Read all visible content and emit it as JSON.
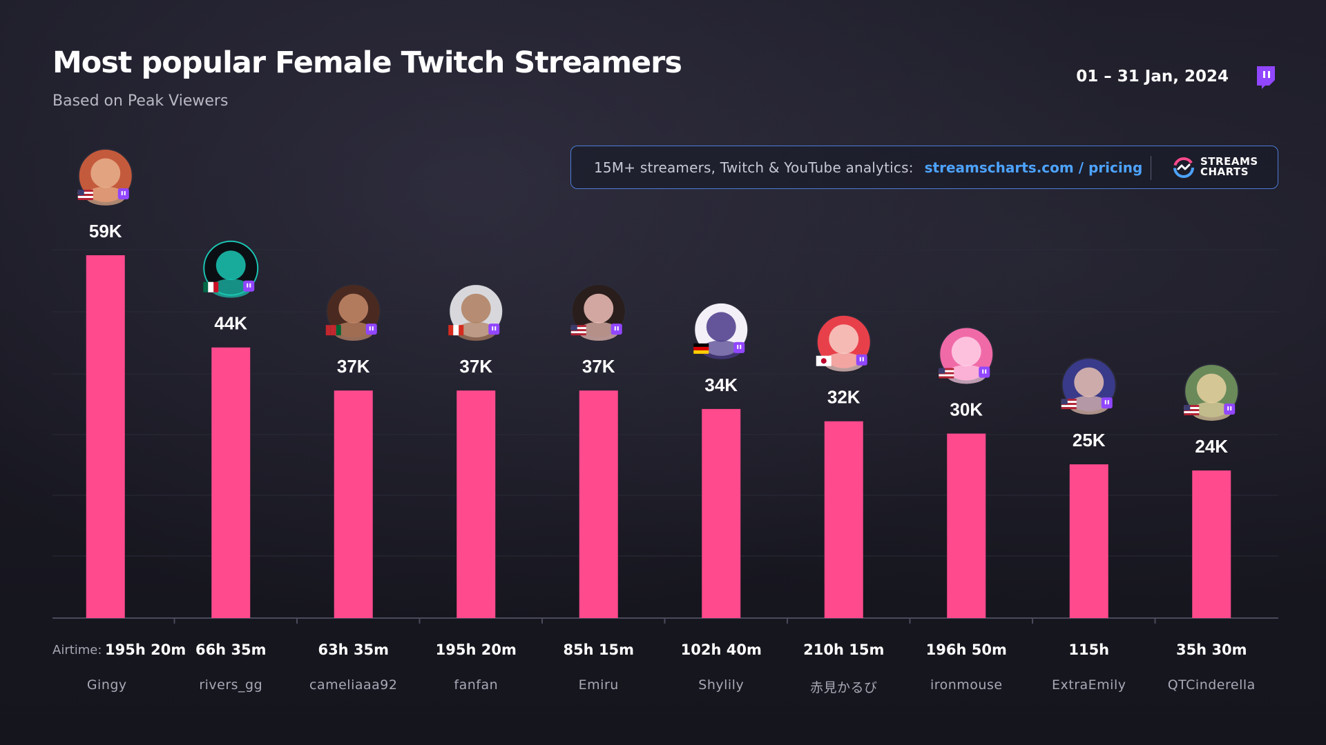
{
  "header": {
    "title": "Most popular Female Twitch Streamers",
    "subtitle": "Based on Peak Viewers",
    "date": "01 – 31 Jan, 2024"
  },
  "promo": {
    "text": "15M+ streamers, Twitch & YouTube analytics:",
    "link": "streamscharts.com / pricing",
    "brand_line1": "STREAMS",
    "brand_line2": "CHARTS"
  },
  "airtime_label": "Airtime:",
  "colors": {
    "bar": "#ff4a8d",
    "accent_blue": "#4da3ff",
    "twitch": "#9146ff",
    "background": "#16161f"
  },
  "icons": [
    "twitch-logo-icon",
    "streams-charts-logo-icon",
    "flag-icon",
    "twitch-badge-icon",
    "avatar"
  ],
  "chart_data": {
    "type": "bar",
    "title": "Most popular Female Twitch Streamers",
    "subtitle": "Based on Peak Viewers",
    "ylim": [
      0,
      60000
    ],
    "grid": true,
    "categories": [
      "Gingy",
      "rivers_gg",
      "cameliaaa92",
      "fanfan",
      "Emiru",
      "Shylily",
      "赤見かるび",
      "ironmouse",
      "ExtraEmily",
      "QTCinderella"
    ],
    "values": [
      59000,
      44000,
      37000,
      37000,
      37000,
      34000,
      32000,
      30000,
      25000,
      24000
    ],
    "labels": [
      "59K",
      "44K",
      "37K",
      "37K",
      "37K",
      "34K",
      "32K",
      "30K",
      "25K",
      "24K"
    ],
    "airtime": [
      "195h 20m",
      "66h 35m",
      "63h 35m",
      "195h 20m",
      "85h 15m",
      "102h 40m",
      "210h 15m",
      "196h 50m",
      "115h",
      "35h 30m"
    ],
    "flags": [
      "US",
      "MX",
      "MA",
      "CA",
      "US",
      "DE",
      "JP",
      "US",
      "US",
      "US"
    ]
  }
}
